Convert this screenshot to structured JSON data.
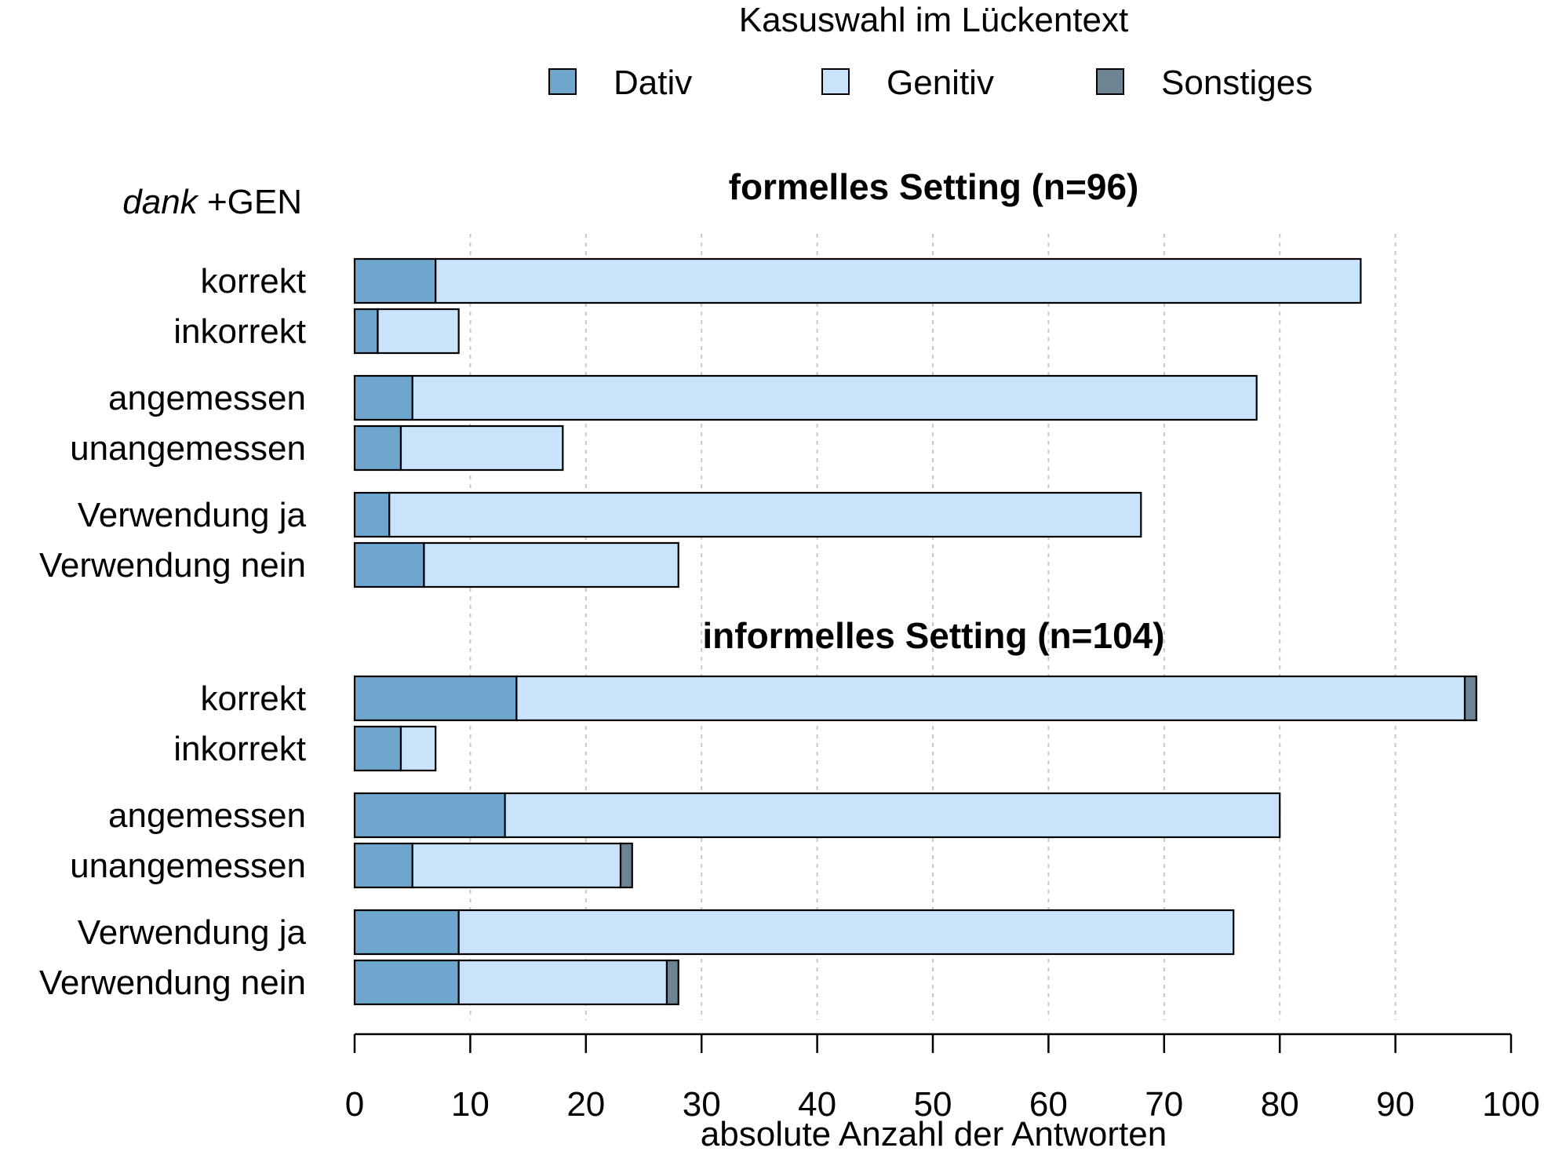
{
  "chart_data": {
    "type": "bar",
    "orientation": "horizontal",
    "stacked": true,
    "legend": {
      "title": "Kasuswahl im Lückentext",
      "placement": "top",
      "entries": [
        {
          "name": "Dativ",
          "color": "#6fa6cd"
        },
        {
          "name": "Genitiv",
          "color": "#c9e3fb"
        },
        {
          "name": "Sonstiges",
          "color": "#6d8593"
        }
      ]
    },
    "corner_label": {
      "italic": "dank",
      "rest": " +GEN"
    },
    "xlabel": "absolute Anzahl der Antworten",
    "xlim": [
      0,
      100
    ],
    "xticks": [
      "0",
      "10",
      "20",
      "30",
      "40",
      "50",
      "60",
      "70",
      "80",
      "90",
      "100"
    ],
    "grid": "vertical dotted",
    "panels": [
      {
        "title": "formelles Setting (n=96)",
        "categories": [
          "korrekt",
          "inkorrekt",
          "angemessen",
          "unangemessen",
          "Verwendung ja",
          "Verwendung nein"
        ],
        "series": [
          {
            "name": "Dativ",
            "values": [
              7,
              2,
              5,
              4,
              3,
              6
            ]
          },
          {
            "name": "Genitiv",
            "values": [
              80,
              7,
              73,
              14,
              65,
              22
            ]
          },
          {
            "name": "Sonstiges",
            "values": [
              0,
              0,
              0,
              0,
              0,
              0
            ]
          }
        ]
      },
      {
        "title": "informelles Setting (n=104)",
        "categories": [
          "korrekt",
          "inkorrekt",
          "angemessen",
          "unangemessen",
          "Verwendung ja",
          "Verwendung nein"
        ],
        "series": [
          {
            "name": "Dativ",
            "values": [
              14,
              4,
              13,
              5,
              9,
              9
            ]
          },
          {
            "name": "Genitiv",
            "values": [
              82,
              3,
              67,
              18,
              67,
              18
            ]
          },
          {
            "name": "Sonstiges",
            "values": [
              1,
              0,
              0,
              1,
              0,
              1
            ]
          }
        ]
      }
    ]
  }
}
